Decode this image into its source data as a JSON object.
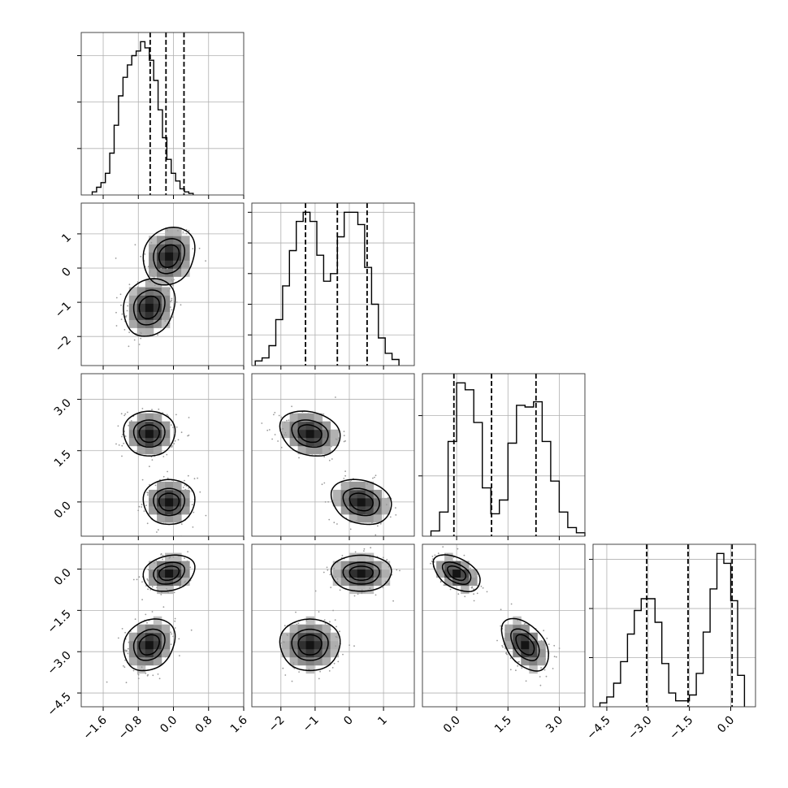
{
  "chart_data": {
    "type": "corner",
    "n_params": 4,
    "ranges": [
      [
        -2.1,
        1.6
      ],
      [
        -2.85,
        1.9
      ],
      [
        -1.0,
        3.75
      ],
      [
        -5.0,
        0.9
      ]
    ],
    "ticks": [
      [
        -1.6,
        -0.8,
        0.0,
        0.8,
        1.6
      ],
      [
        -2,
        -1,
        0,
        1
      ],
      [
        0.0,
        1.5,
        3.0
      ],
      [
        -4.5,
        -3.0,
        -1.5,
        0.0
      ]
    ],
    "tick_labels": [
      [
        "−1.6",
        "−0.8",
        "0.0",
        "0.8",
        "1.6"
      ],
      [
        "−2",
        "−1",
        "0",
        "1"
      ],
      [
        "0.0",
        "1.5",
        "3.0"
      ],
      [
        "−4.5",
        "−3.0",
        "−1.5",
        "0.0"
      ]
    ],
    "quantiles": [
      [
        -0.53,
        -0.17,
        0.24
      ],
      [
        -1.28,
        -0.35,
        0.52
      ],
      [
        -0.08,
        1.02,
        2.32
      ],
      [
        -3.05,
        -1.55,
        0.05
      ]
    ],
    "histograms": [
      {
        "edges_start": -1.85,
        "bin_width": 0.1,
        "counts": [
          0.02,
          0.05,
          0.08,
          0.14,
          0.27,
          0.45,
          0.64,
          0.76,
          0.84,
          0.9,
          0.93,
          0.99,
          0.95,
          0.87,
          0.74,
          0.55,
          0.37,
          0.23,
          0.14,
          0.09,
          0.04,
          0.02,
          0.01
        ],
        "yticks": [
          0.3,
          0.6,
          0.9
        ]
      },
      {
        "edges_start": -2.75,
        "bin_width": 0.2,
        "counts": [
          0.03,
          0.05,
          0.13,
          0.3,
          0.52,
          0.75,
          0.94,
          1.0,
          0.94,
          0.72,
          0.55,
          0.6,
          0.84,
          1.0,
          1.0,
          0.92,
          0.64,
          0.4,
          0.18,
          0.08,
          0.04
        ],
        "yticks": [
          0.2,
          0.4,
          0.6,
          0.8,
          1.0
        ]
      },
      {
        "edges_start": -0.75,
        "bin_width": 0.25,
        "counts": [
          0.03,
          0.14,
          0.55,
          0.89,
          0.85,
          0.66,
          0.28,
          0.13,
          0.21,
          0.54,
          0.76,
          0.75,
          0.78,
          0.55,
          0.32,
          0.14,
          0.05,
          0.02
        ],
        "yticks": [
          0.35,
          0.7
        ]
      },
      {
        "edges_start": -4.75,
        "bin_width": 0.25,
        "counts": [
          0.02,
          0.05,
          0.12,
          0.23,
          0.37,
          0.49,
          0.55,
          0.55,
          0.43,
          0.22,
          0.07,
          0.03,
          0.03,
          0.06,
          0.17,
          0.38,
          0.6,
          0.78,
          0.73,
          0.54,
          0.16
        ],
        "yticks": [
          0.25,
          0.5,
          0.75
        ]
      }
    ],
    "clusters": [
      {
        "center": [
          -0.1,
          0.35,
          0.0,
          -0.15
        ],
        "sigma": [
          0.3,
          0.45,
          0.35,
          0.35
        ],
        "weight": 0.5
      },
      {
        "center": [
          -0.55,
          -1.15,
          2.0,
          -2.75
        ],
        "sigma": [
          0.3,
          0.45,
          0.35,
          0.5
        ],
        "weight": 0.5
      }
    ],
    "correlations": {
      "1-0": 0.15,
      "2-0": 0.0,
      "2-1": -0.2,
      "3-0": 0.2,
      "3-1": 0.0,
      "3-2": -0.45
    },
    "contour_levels": [
      0.25,
      0.5,
      0.85
    ],
    "grid": true,
    "x_axis_labels": "",
    "y_axis_labels": ""
  }
}
